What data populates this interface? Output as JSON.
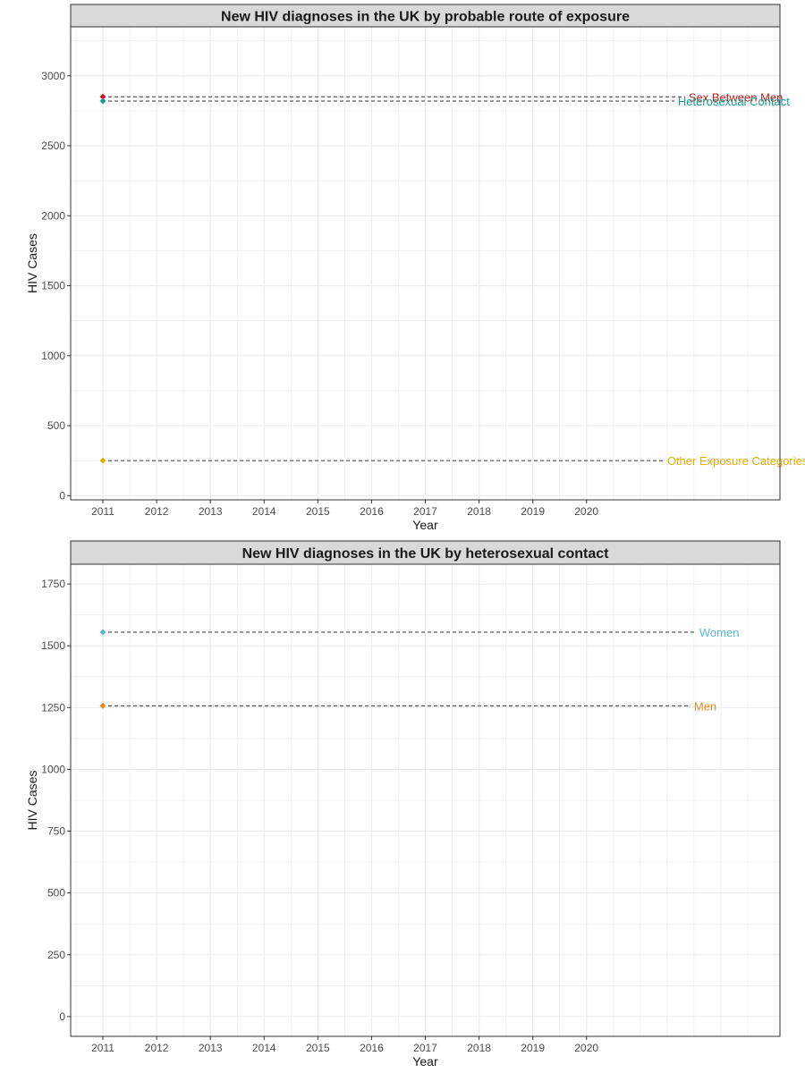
{
  "chart_data": [
    {
      "type": "line",
      "title": "New HIV diagnoses in the UK by probable route of exposure",
      "xlabel": "Year",
      "ylabel": "HIV Cases",
      "x_ticks": [
        "2011",
        "2012",
        "2013",
        "2014",
        "2015",
        "2016",
        "2017",
        "2018",
        "2019",
        "2020"
      ],
      "y_ticks": [
        "0",
        "500",
        "1000",
        "1500",
        "2000",
        "2500",
        "3000"
      ],
      "xlim": [
        2010.4,
        2023.6
      ],
      "ylim": [
        -30,
        3350
      ],
      "grid": true,
      "series": [
        {
          "name": "Sex Between Men",
          "x": [
            2011
          ],
          "y": [
            2850
          ],
          "color": "#cc1a1a",
          "label_x": 2021.9
        },
        {
          "name": "Heterosexual Contact",
          "x": [
            2011
          ],
          "y": [
            2820
          ],
          "color": "#1a9e8f",
          "label_x": 2021.7
        },
        {
          "name": "Other Exposure Categories",
          "x": [
            2011
          ],
          "y": [
            250
          ],
          "color": "#e6ab02",
          "label_x": 2021.5
        }
      ]
    },
    {
      "type": "line",
      "title": "New HIV diagnoses in the UK by heterosexual contact",
      "xlabel": "Year",
      "ylabel": "HIV Cases",
      "x_ticks": [
        "2011",
        "2012",
        "2013",
        "2014",
        "2015",
        "2016",
        "2017",
        "2018",
        "2019",
        "2020"
      ],
      "y_ticks": [
        "0",
        "250",
        "500",
        "750",
        "1000",
        "1250",
        "1500",
        "1750"
      ],
      "xlim": [
        2010.4,
        2023.6
      ],
      "ylim": [
        -80,
        1830
      ],
      "grid": true,
      "series": [
        {
          "name": "Women",
          "x": [
            2011
          ],
          "y": [
            1555
          ],
          "color": "#5ab4d6",
          "label_x": 2022.1
        },
        {
          "name": "Men",
          "x": [
            2011
          ],
          "y": [
            1257
          ],
          "color": "#e88a1a",
          "label_x": 2022.0
        }
      ]
    }
  ]
}
